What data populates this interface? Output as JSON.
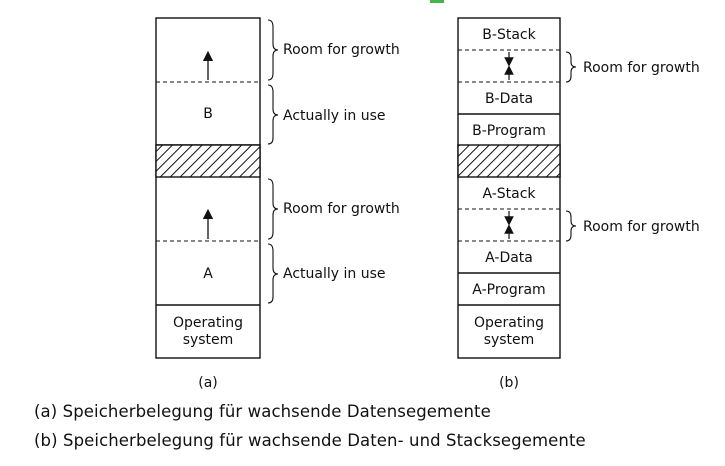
{
  "colors": {
    "accent": "#43b54a",
    "line": "#111111",
    "hatch": "#111111"
  },
  "diagram_a": {
    "label": "(a)",
    "regions": [
      {
        "id": "growth-b",
        "text": ""
      },
      {
        "id": "b",
        "text": "B"
      },
      {
        "id": "hatched",
        "text": ""
      },
      {
        "id": "growth-a",
        "text": ""
      },
      {
        "id": "a",
        "text": "A"
      },
      {
        "id": "os",
        "text": "Operating\nsystem"
      }
    ],
    "os_lines": [
      "Operating",
      "system"
    ],
    "braces": [
      "Room for growth",
      "Actually in use",
      "Room for growth",
      "Actually in use"
    ]
  },
  "diagram_b": {
    "label": "(b)",
    "regions": [
      "B-Stack",
      "B-Data",
      "B-Program",
      "A-Stack",
      "A-Data",
      "A-Program"
    ],
    "os_lines": [
      "Operating",
      "system"
    ],
    "braces": [
      "Room for growth",
      "Room for growth"
    ]
  },
  "captions": {
    "a": "(a) Speicherbelegung für wachsende Datensegemente",
    "b": "(b) Speicherbelegung für wachsende Daten- und Stacksegemente"
  }
}
